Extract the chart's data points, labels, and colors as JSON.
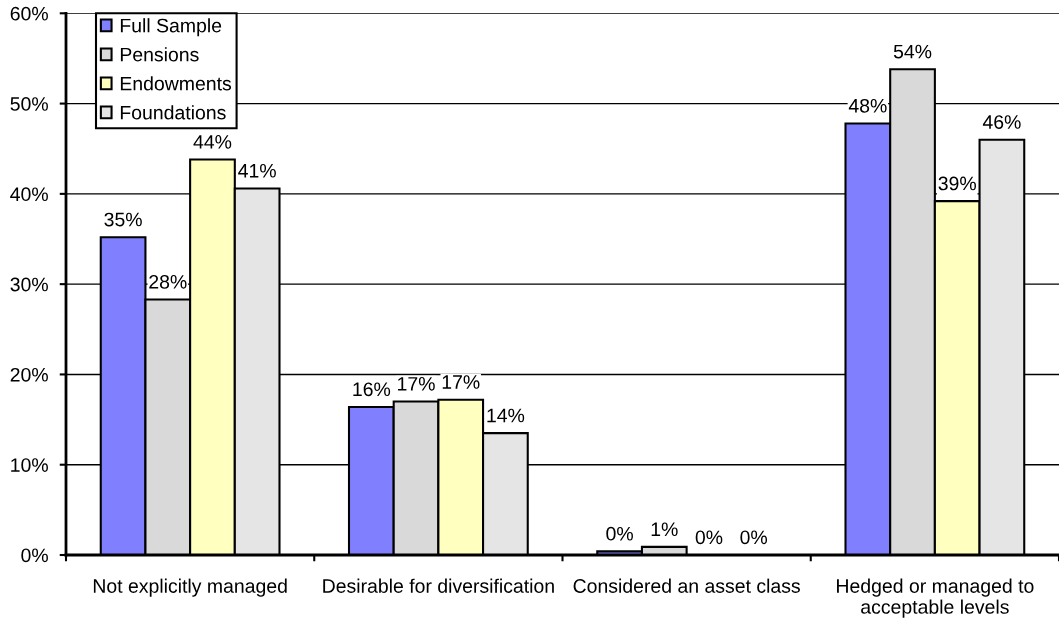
{
  "chart_data": {
    "type": "bar",
    "categories": [
      "Not explicitly managed",
      "Desirable for diversification",
      "Considered an asset class",
      "Hedged or managed to acceptable levels"
    ],
    "series": [
      {
        "name": "Full Sample",
        "color": "#8080ff",
        "values": [
          35.2,
          16.4,
          0.4,
          47.8
        ],
        "value_labels": [
          "35%",
          "16%",
          "0%",
          "48%"
        ]
      },
      {
        "name": "Pensions",
        "color": "#d9d9d9",
        "values": [
          28.3,
          17.0,
          0.9,
          53.8
        ],
        "value_labels": [
          "28%",
          "17%",
          "1%",
          "54%"
        ]
      },
      {
        "name": "Endowments",
        "color": "#ffffc0",
        "values": [
          43.8,
          17.2,
          0,
          39.2
        ],
        "value_labels": [
          "44%",
          "17%",
          "0%",
          "39%"
        ]
      },
      {
        "name": "Foundations",
        "color": "#e5e5e5",
        "values": [
          40.6,
          13.5,
          0,
          46.0
        ],
        "value_labels": [
          "41%",
          "14%",
          "0%",
          "46%"
        ]
      }
    ],
    "ylim": [
      0,
      60
    ],
    "yticks": [
      {
        "value": 0,
        "label": "0%"
      },
      {
        "value": 10,
        "label": "10%"
      },
      {
        "value": 20,
        "label": "20%"
      },
      {
        "value": 30,
        "label": "30%"
      },
      {
        "value": 40,
        "label": "40%"
      },
      {
        "value": 50,
        "label": "50%"
      },
      {
        "value": 60,
        "label": "60%"
      }
    ],
    "grid": "y",
    "legend": "top left"
  }
}
